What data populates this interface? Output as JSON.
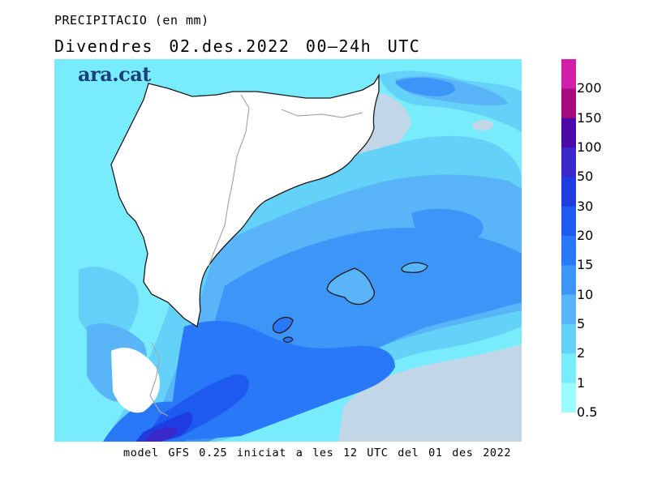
{
  "header": {
    "title": "PRECIPITACIO (en mm)",
    "subtitle": "Divendres  02.des.2022 00—24h UTC",
    "logo_text": "ara.cat"
  },
  "footer": {
    "model_info": "model GFS 0.25 iniciat a les 12 UTC del 01 des 2022"
  },
  "legend": {
    "labels": [
      "200",
      "150",
      "100",
      "50",
      "30",
      "20",
      "15",
      "10",
      "5",
      "2",
      "1",
      "0.5"
    ],
    "colors": [
      "#d21ea8",
      "#a80b80",
      "#4c0aa8",
      "#3a28c8",
      "#1e3ce0",
      "#1e5af0",
      "#2878f8",
      "#3c96f8",
      "#5ab4f8",
      "#64d2f8",
      "#78ecfc",
      "#9cfcfc"
    ]
  },
  "map": {
    "land_color": "#ffffff",
    "no_rain_sea_color": "#c1d6e6",
    "coast_color": "#1a1a1a",
    "border_color": "#a8a8a8",
    "islands": [
      "Mallorca",
      "Menorca",
      "Eivissa"
    ]
  }
}
